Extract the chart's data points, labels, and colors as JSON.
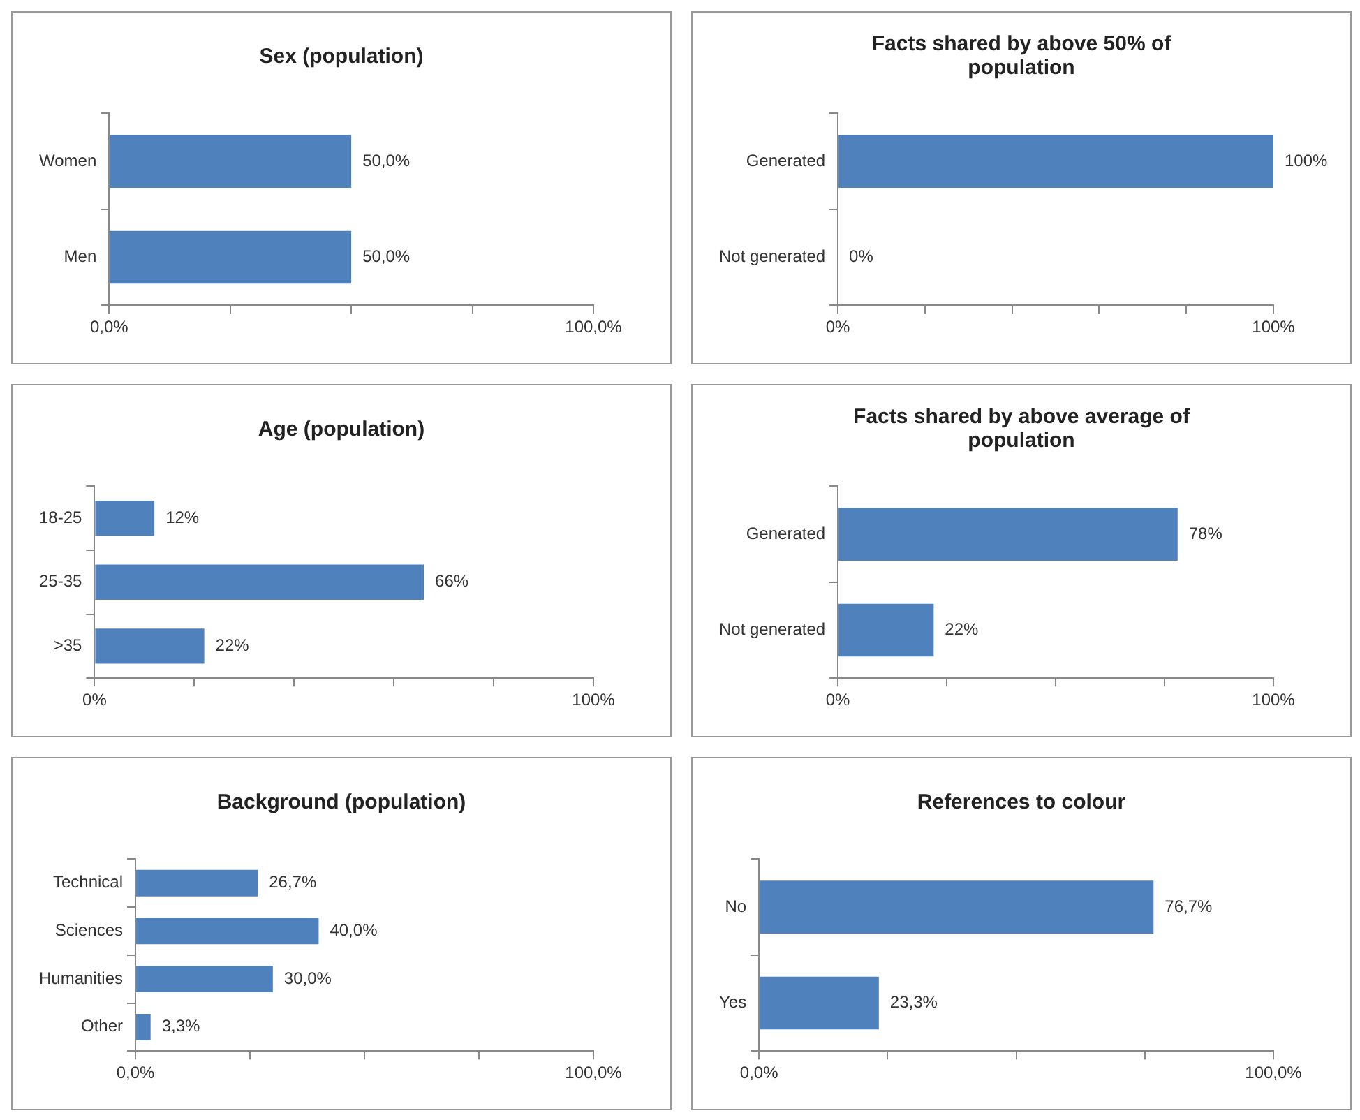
{
  "chart_data": [
    {
      "type": "bar",
      "orientation": "horizontal",
      "title": "Sex (population)",
      "categories": [
        "Women",
        "Men"
      ],
      "values": [
        50,
        50
      ],
      "value_labels": [
        "50,0%",
        "50,0%"
      ],
      "color": "#4f81bd",
      "xlim": [
        0,
        100
      ],
      "xticks": [
        {
          "value": 0,
          "label": "0,0%"
        },
        {
          "value": 25,
          "label": null
        },
        {
          "value": 50,
          "label": null
        },
        {
          "value": 75,
          "label": null
        },
        {
          "value": 100,
          "label": "100,0%"
        }
      ],
      "grid": false
    },
    {
      "type": "bar",
      "orientation": "horizontal",
      "title": "Facts shared by above 50% of population",
      "categories": [
        "Generated",
        "Not generated"
      ],
      "values": [
        100,
        0
      ],
      "value_labels": [
        "100%",
        "0%"
      ],
      "color": "#4f81bd",
      "xlim": [
        0,
        100
      ],
      "xticks": [
        {
          "value": 0,
          "label": "0%"
        },
        {
          "value": 20,
          "label": null
        },
        {
          "value": 40,
          "label": null
        },
        {
          "value": 60,
          "label": null
        },
        {
          "value": 80,
          "label": null
        },
        {
          "value": 100,
          "label": "100%"
        }
      ],
      "grid": false
    },
    {
      "type": "bar",
      "orientation": "horizontal",
      "title": "Age (population)",
      "categories": [
        "18-25",
        "25-35",
        ">35"
      ],
      "values": [
        12,
        66,
        22
      ],
      "value_labels": [
        "12%",
        "66%",
        "22%"
      ],
      "color": "#4f81bd",
      "xlim": [
        0,
        100
      ],
      "xticks": [
        {
          "value": 0,
          "label": "0%"
        },
        {
          "value": 20,
          "label": null
        },
        {
          "value": 40,
          "label": null
        },
        {
          "value": 60,
          "label": null
        },
        {
          "value": 80,
          "label": null
        },
        {
          "value": 100,
          "label": "100%"
        }
      ],
      "grid": false
    },
    {
      "type": "bar",
      "orientation": "horizontal",
      "title": "Facts shared by above average of population",
      "categories": [
        "Generated",
        "Not generated"
      ],
      "values": [
        78,
        22
      ],
      "value_labels": [
        "78%",
        "22%"
      ],
      "color": "#4f81bd",
      "xlim": [
        0,
        100
      ],
      "xticks": [
        {
          "value": 0,
          "label": "0%"
        },
        {
          "value": 25,
          "label": null
        },
        {
          "value": 50,
          "label": null
        },
        {
          "value": 75,
          "label": null
        },
        {
          "value": 100,
          "label": "100%"
        }
      ],
      "grid": false
    },
    {
      "type": "bar",
      "orientation": "horizontal",
      "title": "Background (population)",
      "categories": [
        "Technical",
        "Sciences",
        "Humanities",
        "Other"
      ],
      "values": [
        26.7,
        40,
        30,
        3.3
      ],
      "value_labels": [
        "26,7%",
        "40,0%",
        "30,0%",
        "3,3%"
      ],
      "color": "#4f81bd",
      "xlim": [
        0,
        100
      ],
      "xticks": [
        {
          "value": 0,
          "label": "0,0%"
        },
        {
          "value": 25,
          "label": null
        },
        {
          "value": 50,
          "label": null
        },
        {
          "value": 75,
          "label": null
        },
        {
          "value": 100,
          "label": "100,0%"
        }
      ],
      "grid": false
    },
    {
      "type": "bar",
      "orientation": "horizontal",
      "title": "References to colour",
      "categories": [
        "No",
        "Yes"
      ],
      "values": [
        76.7,
        23.3
      ],
      "value_labels": [
        "76,7%",
        "23,3%"
      ],
      "color": "#4f81bd",
      "xlim": [
        0,
        100
      ],
      "xticks": [
        {
          "value": 0,
          "label": "0,0%"
        },
        {
          "value": 25,
          "label": null
        },
        {
          "value": 50,
          "label": null
        },
        {
          "value": 75,
          "label": null
        },
        {
          "value": 100,
          "label": "100,0%"
        }
      ],
      "grid": false
    }
  ]
}
